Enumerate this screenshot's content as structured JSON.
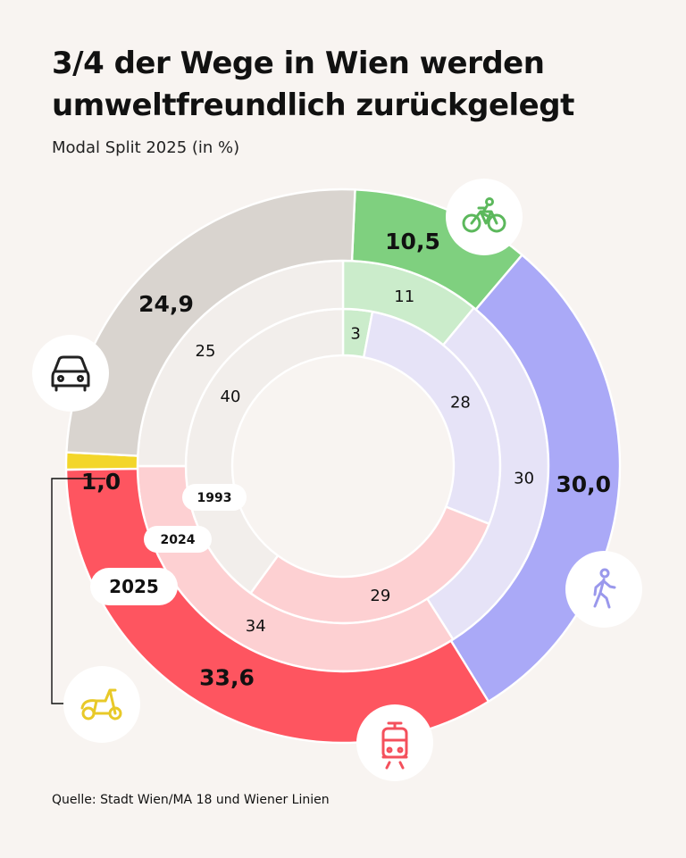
{
  "title": "3/4 der Wege in Wien werden umweltfreundlich zurückgelegt",
  "subtitle": "Modal Split 2025 (in %)",
  "source": "Quelle: Stadt Wien/MA 18 und Wiener Linien",
  "chart_data": {
    "type": "pie",
    "variant": "nested-donut",
    "categories": [
      "Fahrrad",
      "Fußweg",
      "Öffis",
      "Moped/Motorrad",
      "Auto"
    ],
    "category_icons": [
      "bicycle-icon",
      "pedestrian-icon",
      "tram-icon",
      "scooter-icon",
      "car-icon"
    ],
    "series": [
      {
        "name": "1993",
        "values": [
          3,
          28,
          29,
          null,
          40
        ],
        "labels": [
          "3",
          "28",
          "29",
          "",
          "40"
        ]
      },
      {
        "name": "2024",
        "values": [
          11,
          30,
          34,
          null,
          25
        ],
        "labels": [
          "11",
          "30",
          "34",
          "",
          "25"
        ]
      },
      {
        "name": "2025",
        "values": [
          10.5,
          30.0,
          33.6,
          1.0,
          24.9
        ],
        "labels": [
          "10,5",
          "30,0",
          "33,6",
          "1,0",
          "24,9"
        ]
      }
    ],
    "colors": {
      "1993": [
        "#cbeccb",
        "#e6e3f7",
        "#fdd0d2",
        "#f2eeeb",
        "#f2eeeb"
      ],
      "2024": [
        "#cbeccb",
        "#e6e3f7",
        "#fdd0d2",
        "#f2eeeb",
        "#f2eeeb"
      ],
      "2025": [
        "#7fd07f",
        "#aaa9f7",
        "#fe5560",
        "#f3d62a",
        "#d9d4cf"
      ]
    },
    "icon_colors": [
      "#5cb85c",
      "#9a98ec",
      "#f4505c",
      "#e8c928",
      "#222222"
    ]
  }
}
